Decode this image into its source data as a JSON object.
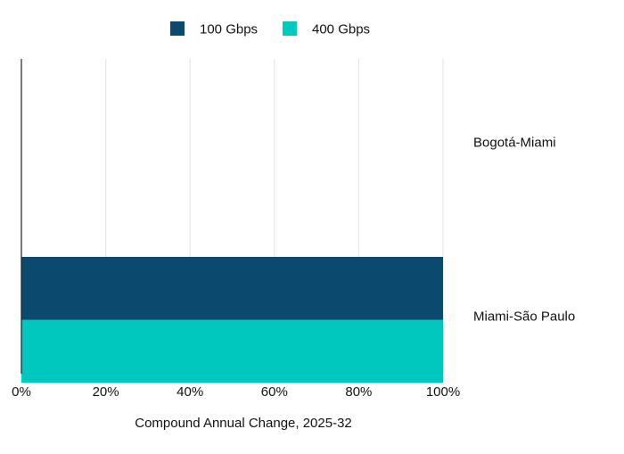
{
  "chart_data": {
    "type": "bar",
    "orientation": "horizontal",
    "stacked": false,
    "categories": [
      "Bogotá-Miami",
      "Miami-São Paulo"
    ],
    "series": [
      {
        "name": "100 Gbps",
        "values": [
          0,
          100
        ],
        "color": "#0b4a6e"
      },
      {
        "name": "400 Gbps",
        "values": [
          0,
          100
        ],
        "color": "#00c8bf"
      }
    ],
    "xlabel": "Compound Annual Change, 2025-32",
    "xlim": [
      0,
      100
    ],
    "xticks": [
      0,
      20,
      40,
      60,
      80,
      100
    ],
    "tick_suffix": "%",
    "grid": true,
    "legend": "top-center",
    "category_labels_position": "right"
  }
}
